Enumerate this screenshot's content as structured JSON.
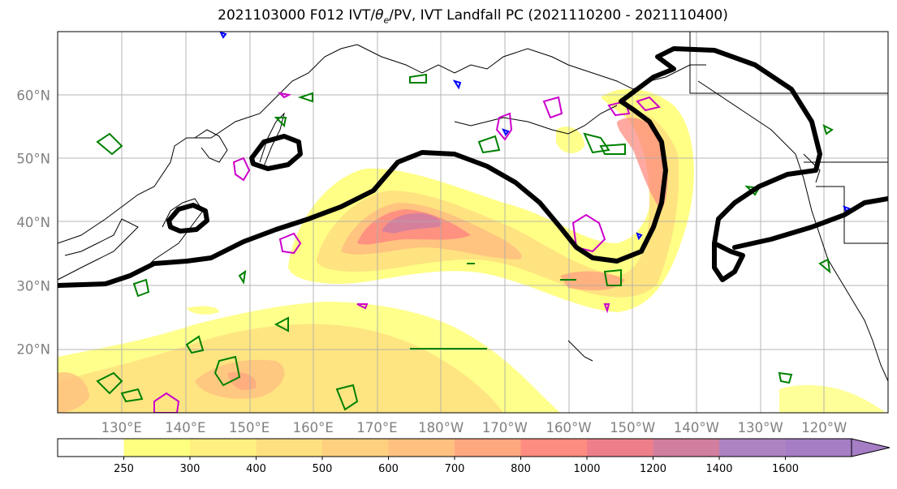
{
  "title": {
    "prefix": "2021103000 F012 IVT/",
    "symbol": "θ",
    "subscript": "e",
    "suffix": "/PV, IVT Landfall PC (2021110200 - 2021110400)"
  },
  "map": {
    "lat_range": [
      10,
      70
    ],
    "lon_range": [
      120,
      250
    ],
    "lat_labels": [
      {
        "lat": 20,
        "text": "20°N"
      },
      {
        "lat": 30,
        "text": "30°N"
      },
      {
        "lat": 40,
        "text": "40°N"
      },
      {
        "lat": 50,
        "text": "50°N"
      },
      {
        "lat": 60,
        "text": "60°N"
      }
    ],
    "lon_labels": [
      {
        "lon": 130,
        "text": "130°E"
      },
      {
        "lon": 140,
        "text": "140°E"
      },
      {
        "lon": 150,
        "text": "150°E"
      },
      {
        "lon": 160,
        "text": "160°E"
      },
      {
        "lon": 170,
        "text": "170°E"
      },
      {
        "lon": 180,
        "text": "180°W"
      },
      {
        "lon": 190,
        "text": "170°W"
      },
      {
        "lon": 200,
        "text": "160°W"
      },
      {
        "lon": 210,
        "text": "150°W"
      },
      {
        "lon": 220,
        "text": "140°W"
      },
      {
        "lon": 230,
        "text": "130°W"
      },
      {
        "lon": 240,
        "text": "120°W"
      }
    ],
    "grid": true,
    "pc_contour_color": "#000000",
    "pv_contour_color": "#008000",
    "theta_e_contour_color": "#cc00cc",
    "minor_contour_color": "#0000ff"
  },
  "colorbar": {
    "levels": [
      250,
      300,
      400,
      500,
      600,
      700,
      800,
      1000,
      1200,
      1400,
      1600
    ],
    "colors": [
      "#ffffff",
      "#ffff80",
      "#fff080",
      "#ffe080",
      "#ffd080",
      "#ffc080",
      "#ffa880",
      "#ff8c80",
      "#ee7f8a",
      "#d27e9e",
      "#ad83c2",
      "#a57ec5"
    ],
    "extend": "max"
  }
}
